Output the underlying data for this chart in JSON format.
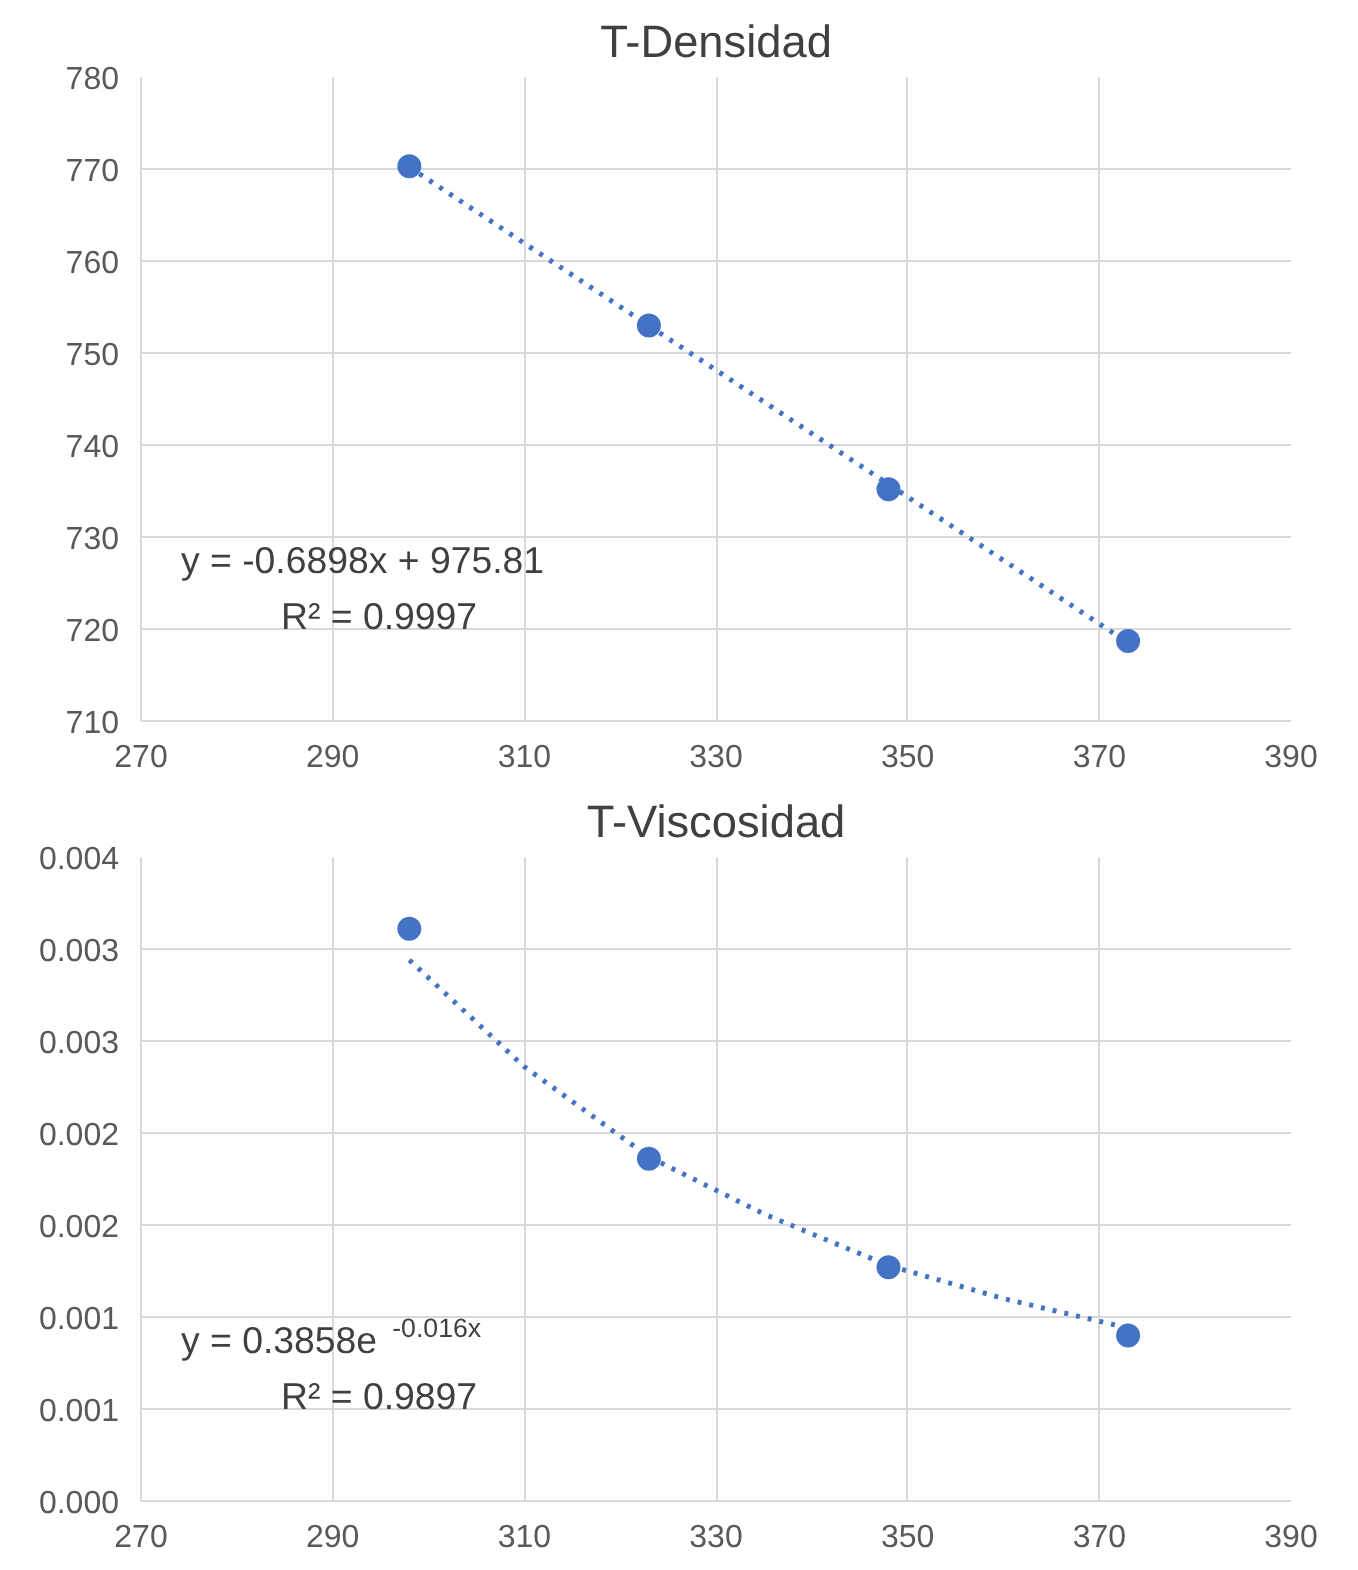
{
  "chart_data": [
    {
      "type": "scatter",
      "title": "T-Densidad",
      "x": [
        298,
        323,
        348,
        373
      ],
      "grid": true,
      "series": [
        {
          "marker": "circle",
          "color": "#4472c4",
          "values": [
            770.3,
            753.0,
            735.2,
            718.7
          ]
        },
        {
          "type": "line",
          "line_style": "dotted",
          "color": "#4472c4",
          "x": [
            298,
            373
          ],
          "values": [
            770.2,
            718.5
          ]
        }
      ],
      "xlim": [
        270,
        390
      ],
      "xticks": [
        270,
        290,
        310,
        330,
        350,
        370,
        390
      ],
      "ylim": [
        710,
        780
      ],
      "yticks": [
        710,
        720,
        730,
        740,
        750,
        760,
        770,
        780
      ],
      "annotations": [
        "y = -0.6898x + 975.81",
        "R² = 0.9997"
      ]
    },
    {
      "type": "scatter",
      "title": "T-Viscosidad",
      "x": [
        298,
        323,
        348,
        373
      ],
      "grid": true,
      "series": [
        {
          "marker": "circle",
          "color": "#4472c4",
          "values": [
            0.00311,
            0.00186,
            0.00127,
            0.0009
          ]
        },
        {
          "type": "line",
          "line_style": "dotted",
          "color": "#4472c4",
          "x": [
            298,
            310,
            323,
            335,
            348,
            360,
            373
          ],
          "values": [
            0.00294,
            0.00236,
            0.00187,
            0.00156,
            0.00128,
            0.0011,
            0.00094
          ]
        }
      ],
      "xlim": [
        270,
        390
      ],
      "xticks": [
        270,
        290,
        310,
        330,
        350,
        370,
        390
      ],
      "ylim": [
        0,
        0.0035
      ],
      "yticks": [
        {
          "value": 0,
          "label": "0.000"
        },
        {
          "value": 0.0005,
          "label": "0.001"
        },
        {
          "value": 0.001,
          "label": "0.001"
        },
        {
          "value": 0.0015,
          "label": "0.002"
        },
        {
          "value": 0.002,
          "label": "0.002"
        },
        {
          "value": 0.0025,
          "label": "0.003"
        },
        {
          "value": 0.003,
          "label": "0.003"
        },
        {
          "value": 0.0035,
          "label": "0.004"
        }
      ],
      "annotations": [
        "y = 0.3858e$^{-0.016x}$",
        "R² = 0.9897"
      ]
    }
  ]
}
